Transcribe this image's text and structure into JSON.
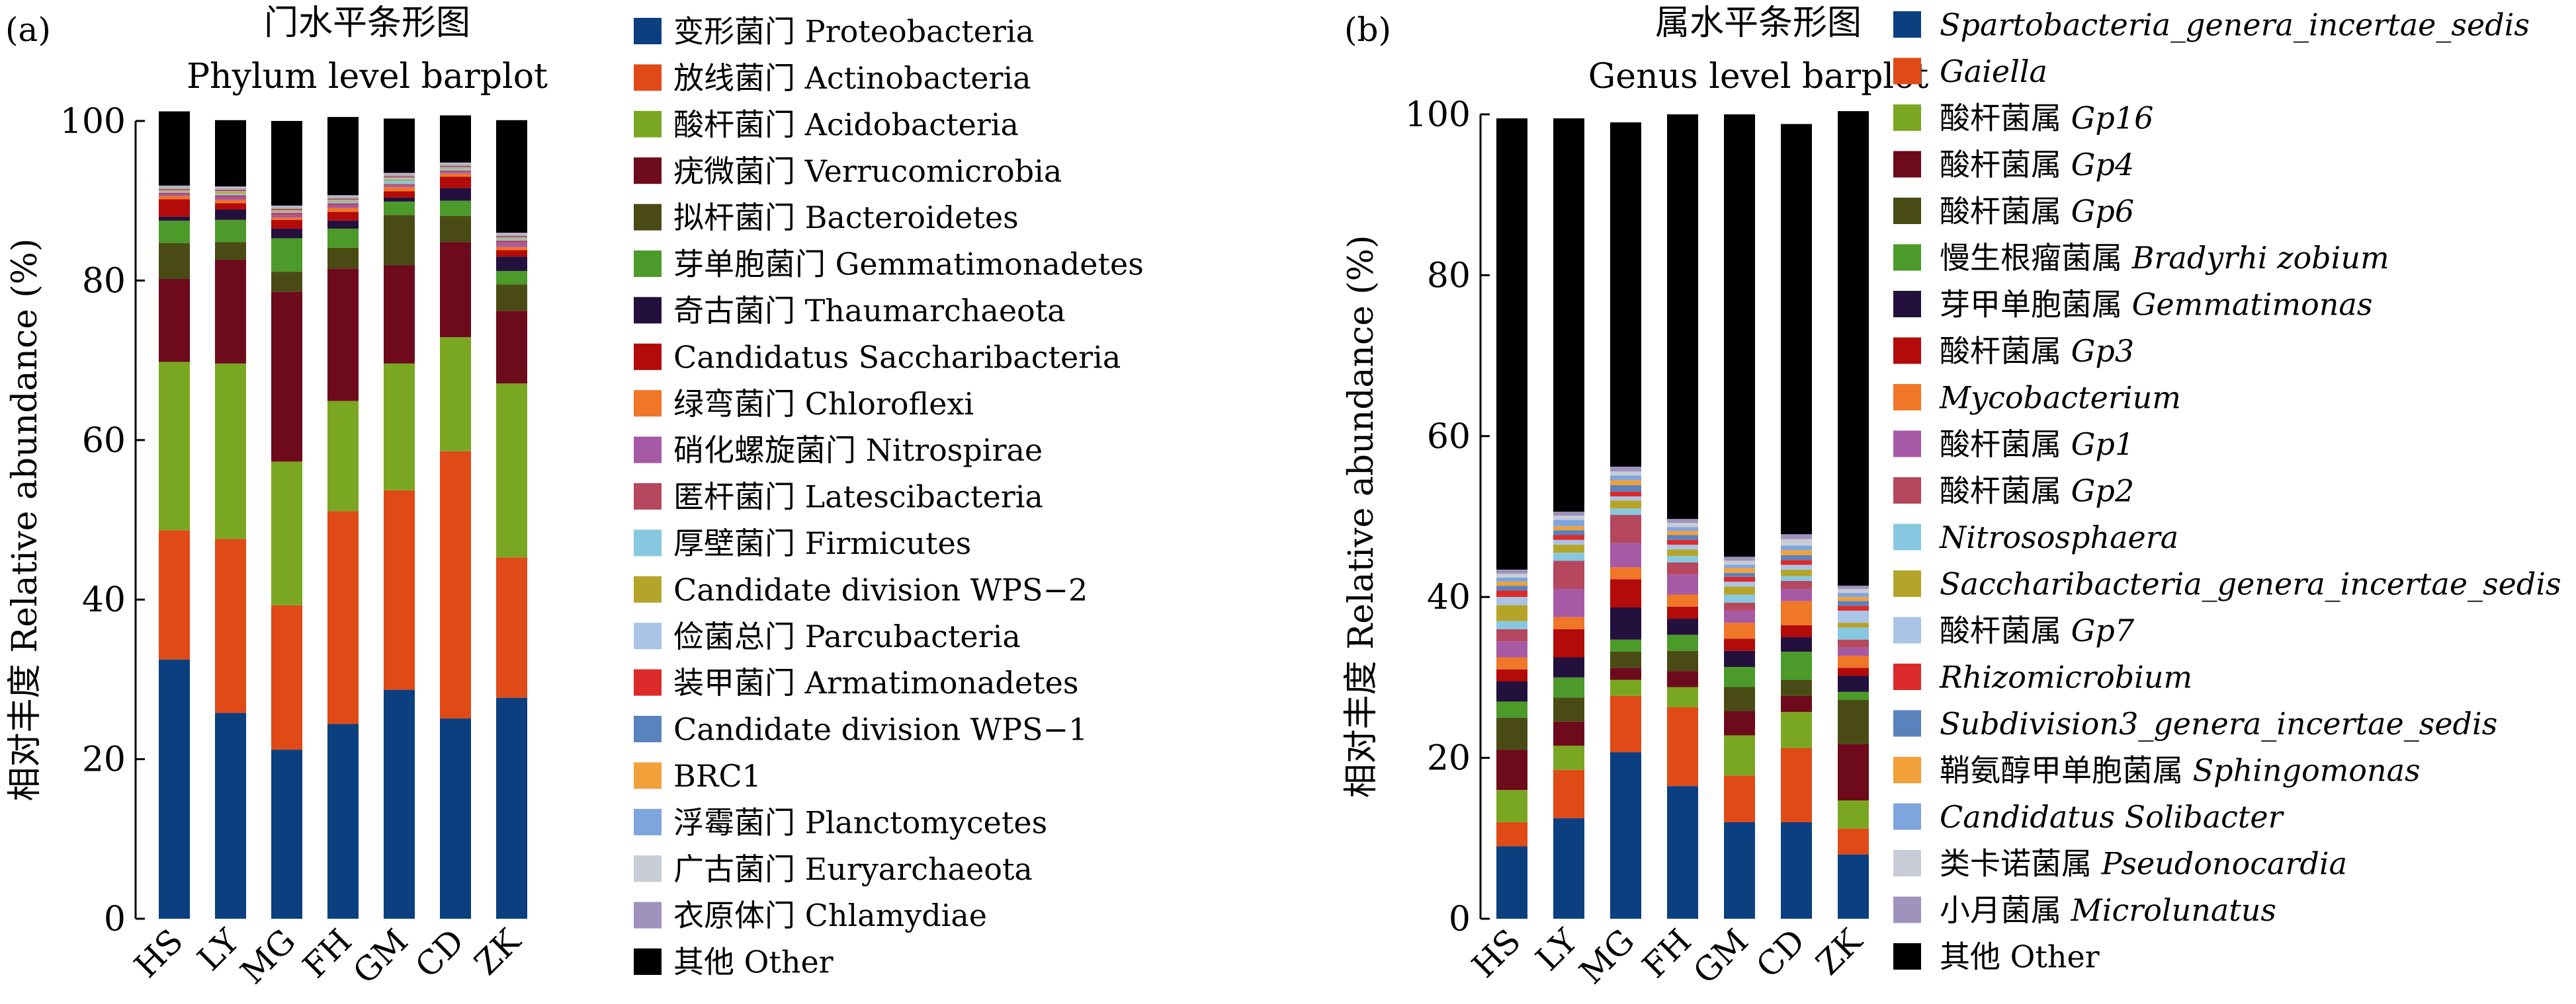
{
  "chart_data": [
    {
      "panel_label": "(a)",
      "title": "门水平条形图",
      "subtitle": "Phylum level barplot",
      "type": "bar",
      "stacked": true,
      "ylabel": "相对丰度 Relative abundance (%)",
      "ylim": [
        0,
        100
      ],
      "yticks": [
        "0",
        "20",
        "40",
        "60",
        "80",
        "100"
      ],
      "categories": [
        "HS",
        "LY",
        "MG",
        "FH",
        "GM",
        "CD",
        "ZK"
      ],
      "series": [
        {
          "name": "变形菌门 Proteobacteria",
          "color": "#0b3f80",
          "values": [
            32.5,
            25.8,
            21.2,
            24.4,
            28.7,
            25.1,
            27.7
          ]
        },
        {
          "name": "放线菌门 Actinobacteria",
          "color": "#e04a17",
          "values": [
            16.2,
            21.8,
            18.1,
            26.7,
            25.0,
            33.5,
            17.6
          ]
        },
        {
          "name": "酸杆菌门 Acidobacteria",
          "color": "#7aa722",
          "values": [
            21.1,
            22.0,
            18.0,
            13.8,
            15.9,
            14.3,
            21.8
          ]
        },
        {
          "name": "疣微菌门 Verrucomicrobia",
          "color": "#6d0a1c",
          "values": [
            10.4,
            13.0,
            21.3,
            16.6,
            12.3,
            11.9,
            9.1
          ]
        },
        {
          "name": "拟杆菌门 Bacteroidetes",
          "color": "#4a4a15",
          "values": [
            4.5,
            2.2,
            2.5,
            2.6,
            6.3,
            3.3,
            3.3
          ]
        },
        {
          "name": "芽单胞菌门 Gemmatimonadetes",
          "color": "#4c9a2a",
          "values": [
            2.8,
            2.8,
            4.2,
            2.4,
            1.7,
            1.9,
            1.7
          ]
        },
        {
          "name": "奇古菌门 Thaumarchaeota",
          "color": "#23103d",
          "values": [
            0.5,
            1.3,
            1.2,
            1.0,
            0.5,
            1.6,
            1.8
          ]
        },
        {
          "name": "Candidatus Saccharibacteria",
          "color": "#b30a0a",
          "values": [
            2.2,
            0.8,
            1.1,
            1.1,
            0.8,
            1.4,
            0.8
          ]
        },
        {
          "name": "绿弯菌门 Chloroflexi",
          "color": "#f07628",
          "values": [
            0.4,
            0.4,
            0.3,
            0.5,
            0.5,
            0.4,
            0.4
          ]
        },
        {
          "name": "硝化螺旋菌门 Nitrospirae",
          "color": "#a65aa6",
          "values": [
            0.2,
            0.3,
            0.3,
            0.3,
            0.2,
            0.2,
            0.5
          ]
        },
        {
          "name": "匿杆菌门 Latescibacteria",
          "color": "#b5485e",
          "values": [
            0.2,
            0.3,
            0.3,
            0.3,
            0.2,
            0.2,
            0.3
          ]
        },
        {
          "name": "厚壁菌门 Firmicutes",
          "color": "#87c8e0",
          "values": [
            0.1,
            0.2,
            0.1,
            0.2,
            0.4,
            0.2,
            0.2
          ]
        },
        {
          "name": "Candidate division WPS−2",
          "color": "#b5a42a",
          "values": [
            0.1,
            0.2,
            0.1,
            0.1,
            0.2,
            0.1,
            0.1
          ]
        },
        {
          "name": "俭菌总门 Parcubacteria",
          "color": "#a9c4e6",
          "values": [
            0.1,
            0.1,
            0.1,
            0.1,
            0.2,
            0.1,
            0.1
          ]
        },
        {
          "name": "装甲菌门 Armatimonadetes",
          "color": "#dc2b2b",
          "values": [
            0.1,
            0.1,
            0.1,
            0.1,
            0.1,
            0.1,
            0.1
          ]
        },
        {
          "name": "Candidate division WPS−1",
          "color": "#5a82bd",
          "values": [
            0.1,
            0.1,
            0.1,
            0.1,
            0.1,
            0.1,
            0.1
          ]
        },
        {
          "name": "BRC1",
          "color": "#f2a03a",
          "values": [
            0.1,
            0.1,
            0.1,
            0.1,
            0.1,
            0.1,
            0.1
          ]
        },
        {
          "name": "浮霉菌门 Planctomycetes",
          "color": "#7fa5de",
          "values": [
            0.1,
            0.1,
            0.1,
            0.1,
            0.1,
            0.1,
            0.1
          ]
        },
        {
          "name": "广古菌门 Euryarchaeota",
          "color": "#c8ccd6",
          "values": [
            0.1,
            0.1,
            0.1,
            0.1,
            0.1,
            0.1,
            0.1
          ]
        },
        {
          "name": "衣原体门 Chlamydiae",
          "color": "#9f93bd",
          "values": [
            0.1,
            0.1,
            0.1,
            0.1,
            0.1,
            0.1,
            0.1
          ]
        },
        {
          "name": "其他 Other",
          "color": "#000000",
          "values": [
            9.3,
            8.3,
            10.6,
            9.8,
            6.8,
            5.9,
            14.1
          ]
        }
      ]
    },
    {
      "panel_label": "(b)",
      "title": "属水平条形图",
      "subtitle": "Genus level barplot",
      "type": "bar",
      "stacked": true,
      "ylabel": "相对丰度 Relative abundance (%)",
      "ylim": [
        0,
        100
      ],
      "yticks": [
        "0",
        "20",
        "40",
        "60",
        "80",
        "100"
      ],
      "categories": [
        "HS",
        "LY",
        "MG",
        "FH",
        "GM",
        "CD",
        "ZK"
      ],
      "series": [
        {
          "name_cn": "",
          "name_sci": "Spartobacteria_genera_incertae_sedis",
          "color": "#0b3f80",
          "values": [
            9.0,
            12.5,
            20.7,
            16.5,
            12.0,
            12.0,
            8.0
          ]
        },
        {
          "name_cn": "",
          "name_sci": "Gaiella",
          "color": "#e04a17",
          "values": [
            3.0,
            6.0,
            7.0,
            9.8,
            5.8,
            9.2,
            3.2
          ]
        },
        {
          "name_cn": "酸杆菌属 ",
          "name_sci": "Gp16",
          "color": "#7aa722",
          "values": [
            4.0,
            3.0,
            2.0,
            2.5,
            5.0,
            4.5,
            3.5
          ]
        },
        {
          "name_cn": "酸杆菌属 ",
          "name_sci": "Gp4",
          "color": "#6d0a1c",
          "values": [
            5.0,
            3.0,
            1.5,
            2.0,
            3.0,
            2.0,
            7.0
          ]
        },
        {
          "name_cn": "酸杆菌属 ",
          "name_sci": "Gp6",
          "color": "#4a4a15",
          "values": [
            4.0,
            3.0,
            2.0,
            2.5,
            3.0,
            2.0,
            5.5
          ]
        },
        {
          "name_cn": "慢生根瘤菌属 ",
          "name_sci": "Bradyrhi zobium",
          "color": "#4c9a2a",
          "values": [
            2.0,
            2.5,
            1.5,
            2.0,
            2.5,
            3.5,
            1.0
          ]
        },
        {
          "name_cn": "芽甲单胞菌属 ",
          "name_sci": "Gemmatimonas",
          "color": "#23103d",
          "values": [
            2.5,
            2.5,
            4.0,
            2.0,
            2.0,
            1.8,
            2.0
          ]
        },
        {
          "name_cn": "酸杆菌属 ",
          "name_sci": "Gp3",
          "color": "#b30a0a",
          "values": [
            1.5,
            3.5,
            3.5,
            1.5,
            1.5,
            1.5,
            1.0
          ]
        },
        {
          "name_cn": "",
          "name_sci": "Mycobacterium",
          "color": "#f07628",
          "values": [
            1.5,
            1.5,
            1.5,
            1.5,
            2.0,
            3.0,
            1.5
          ]
        },
        {
          "name_cn": "酸杆菌属 ",
          "name_sci": "Gp1",
          "color": "#a65aa6",
          "values": [
            2.0,
            3.5,
            3.0,
            2.5,
            1.5,
            1.5,
            1.0
          ]
        },
        {
          "name_cn": "酸杆菌属 ",
          "name_sci": "Gp2",
          "color": "#b5485e",
          "values": [
            1.5,
            3.5,
            3.5,
            1.5,
            1.0,
            1.0,
            1.0
          ]
        },
        {
          "name_cn": "",
          "name_sci": "Nitrososphaera",
          "color": "#87c8e0",
          "values": [
            1.0,
            1.0,
            0.8,
            0.8,
            1.0,
            0.6,
            1.5
          ]
        },
        {
          "name_cn": "",
          "name_sci": "Saccharibacteria_genera_incertae_sedis",
          "color": "#b5a42a",
          "values": [
            2.0,
            1.0,
            1.0,
            0.8,
            1.0,
            0.8,
            0.6
          ]
        },
        {
          "name_cn": "酸杆菌属 ",
          "name_sci": "Gp7",
          "color": "#a9c4e6",
          "values": [
            1.0,
            0.6,
            0.5,
            0.6,
            0.6,
            0.6,
            1.5
          ]
        },
        {
          "name_cn": "",
          "name_sci": "Rhizomicrobium",
          "color": "#dc2b2b",
          "values": [
            0.8,
            0.6,
            0.6,
            0.6,
            0.6,
            0.6,
            0.6
          ]
        },
        {
          "name_cn": "",
          "name_sci": "Subdivision3_genera_incertae_sedis",
          "color": "#5a82bd",
          "values": [
            0.6,
            0.6,
            0.8,
            0.6,
            0.5,
            0.6,
            0.6
          ]
        },
        {
          "name_cn": "鞘氨醇甲单胞菌属 ",
          "name_sci": "Sphingomonas",
          "color": "#f2a03a",
          "values": [
            0.5,
            0.5,
            0.6,
            0.5,
            0.6,
            0.6,
            0.5
          ]
        },
        {
          "name_cn": "",
          "name_sci": "Candidatus Solibacter",
          "color": "#7fa5de",
          "values": [
            0.5,
            0.8,
            0.6,
            0.5,
            0.4,
            0.6,
            0.5
          ]
        },
        {
          "name_cn": "类卡诺菌属 ",
          "name_sci": "Pseudonocardia",
          "color": "#c8ccd6",
          "values": [
            0.5,
            0.5,
            0.5,
            0.5,
            0.5,
            0.8,
            0.5
          ]
        },
        {
          "name_cn": "小月菌属 ",
          "name_sci": "Microlunatus",
          "color": "#9f93bd",
          "values": [
            0.5,
            0.5,
            0.6,
            0.5,
            0.5,
            0.6,
            0.4
          ]
        },
        {
          "name_cn": "其他 Other",
          "name_sci": "",
          "color": "#000000",
          "values": [
            56.1,
            48.9,
            42.8,
            50.3,
            55.0,
            51.0,
            59.0
          ]
        }
      ]
    }
  ]
}
